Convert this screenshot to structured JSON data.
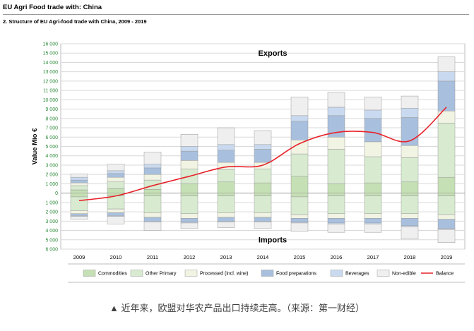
{
  "header": {
    "title": "EU Agri Food trade with: China",
    "subtitle": "2. Structure of EU Agri-food trade with China, 2009 - 2019"
  },
  "caption": "▲ 近年来，欧盟对华农产品出口持续走高。（来源：第一财经）",
  "chart_data": {
    "type": "bar",
    "title": "",
    "ylabel": "Value Mio €",
    "section_labels": {
      "top": "Exports",
      "bottom": "Imports"
    },
    "ylim": [
      -6000,
      16000
    ],
    "y_ticks": [
      16000,
      15000,
      14000,
      13000,
      12000,
      11000,
      10000,
      9000,
      8000,
      7000,
      6000,
      5000,
      4000,
      3000,
      2000,
      1000,
      0,
      -1000,
      -2000,
      -3000,
      -4000,
      -5000,
      -6000
    ],
    "y_tick_labels": [
      "16 000",
      "15 000",
      "14 000",
      "13 000",
      "12 000",
      "11 000",
      "10 000",
      "9 000",
      "8 000",
      "7 000",
      "6 000",
      "5 000",
      "4 000",
      "3 000",
      "2 000",
      "1 000",
      "0",
      "1 000",
      "2 000",
      "3 000",
      "4 000",
      "5 000",
      "6 000"
    ],
    "grid": true,
    "legend_position": "bottom",
    "categories": [
      "2009",
      "2010",
      "2011",
      "2012",
      "2013",
      "2014",
      "2015",
      "2016",
      "2017",
      "2018",
      "2019"
    ],
    "export_series": [
      {
        "name": "Commodities",
        "color": "#c5e0b4",
        "values": [
          350,
          500,
          400,
          1000,
          1200,
          1100,
          1800,
          1000,
          1100,
          1200,
          1700
        ]
      },
      {
        "name": "Other Primary",
        "color": "#d8ebd0",
        "values": [
          450,
          700,
          1000,
          1600,
          1300,
          1500,
          2400,
          3700,
          2800,
          2600,
          5800
        ]
      },
      {
        "name": "Processed (incl. wine)",
        "color": "#f1f3e3",
        "values": [
          300,
          500,
          600,
          900,
          800,
          700,
          1500,
          1300,
          1600,
          1300,
          1300
        ]
      },
      {
        "name": "Food preparations",
        "color": "#a8c0de",
        "values": [
          300,
          400,
          700,
          1000,
          1300,
          1400,
          2000,
          2300,
          2500,
          3000,
          3200
        ]
      },
      {
        "name": "Beverages",
        "color": "#c9daf0",
        "values": [
          300,
          300,
          400,
          500,
          600,
          500,
          600,
          900,
          900,
          1000,
          1000
        ]
      },
      {
        "name": "Non-edible",
        "color": "#efefef",
        "values": [
          350,
          700,
          1300,
          1300,
          1800,
          1500,
          2000,
          1600,
          1400,
          1300,
          1600
        ]
      }
    ],
    "import_series": [
      {
        "name": "Commodities",
        "color": "#c5e0b4",
        "values": [
          -400,
          -300,
          -300,
          -300,
          -300,
          -300,
          -400,
          -300,
          -300,
          -300,
          -300
        ]
      },
      {
        "name": "Other Primary",
        "color": "#d8ebd0",
        "values": [
          -1500,
          -1400,
          -1800,
          -1900,
          -1800,
          -1800,
          -1900,
          -1900,
          -1900,
          -1900,
          -2000
        ]
      },
      {
        "name": "Processed (incl. wine)",
        "color": "#f1f3e3",
        "values": [
          -300,
          -400,
          -500,
          -500,
          -500,
          -500,
          -400,
          -500,
          -500,
          -500,
          -500
        ]
      },
      {
        "name": "Food preparations",
        "color": "#a8c0de",
        "values": [
          -200,
          -300,
          -400,
          -400,
          -400,
          -400,
          -400,
          -500,
          -500,
          -800,
          -1000
        ]
      },
      {
        "name": "Beverages",
        "color": "#c9daf0",
        "values": [
          -100,
          -100,
          -100,
          -100,
          -100,
          -100,
          -100,
          -100,
          -100,
          -100,
          -100
        ]
      },
      {
        "name": "Non-edible",
        "color": "#efefef",
        "values": [
          -300,
          -800,
          -900,
          -600,
          -600,
          -700,
          -900,
          -900,
          -900,
          -1300,
          -1400
        ]
      }
    ],
    "balance": {
      "name": "Balance",
      "color": "#e8232a",
      "values": [
        -800,
        -300,
        800,
        1800,
        2800,
        3000,
        5300,
        6500,
        6500,
        5600,
        9200
      ]
    },
    "legend": [
      {
        "name": "Commodities",
        "color": "#c5e0b4",
        "kind": "box"
      },
      {
        "name": "Other Primary",
        "color": "#d8ebd0",
        "kind": "box"
      },
      {
        "name": "Processed (incl. wine)",
        "color": "#f1f3e3",
        "kind": "box"
      },
      {
        "name": "Food preparations",
        "color": "#a8c0de",
        "kind": "box"
      },
      {
        "name": "Beverages",
        "color": "#c9daf0",
        "kind": "box"
      },
      {
        "name": "Non-edible",
        "color": "#efefef",
        "kind": "box"
      },
      {
        "name": "Balance",
        "color": "#e8232a",
        "kind": "line"
      }
    ]
  }
}
